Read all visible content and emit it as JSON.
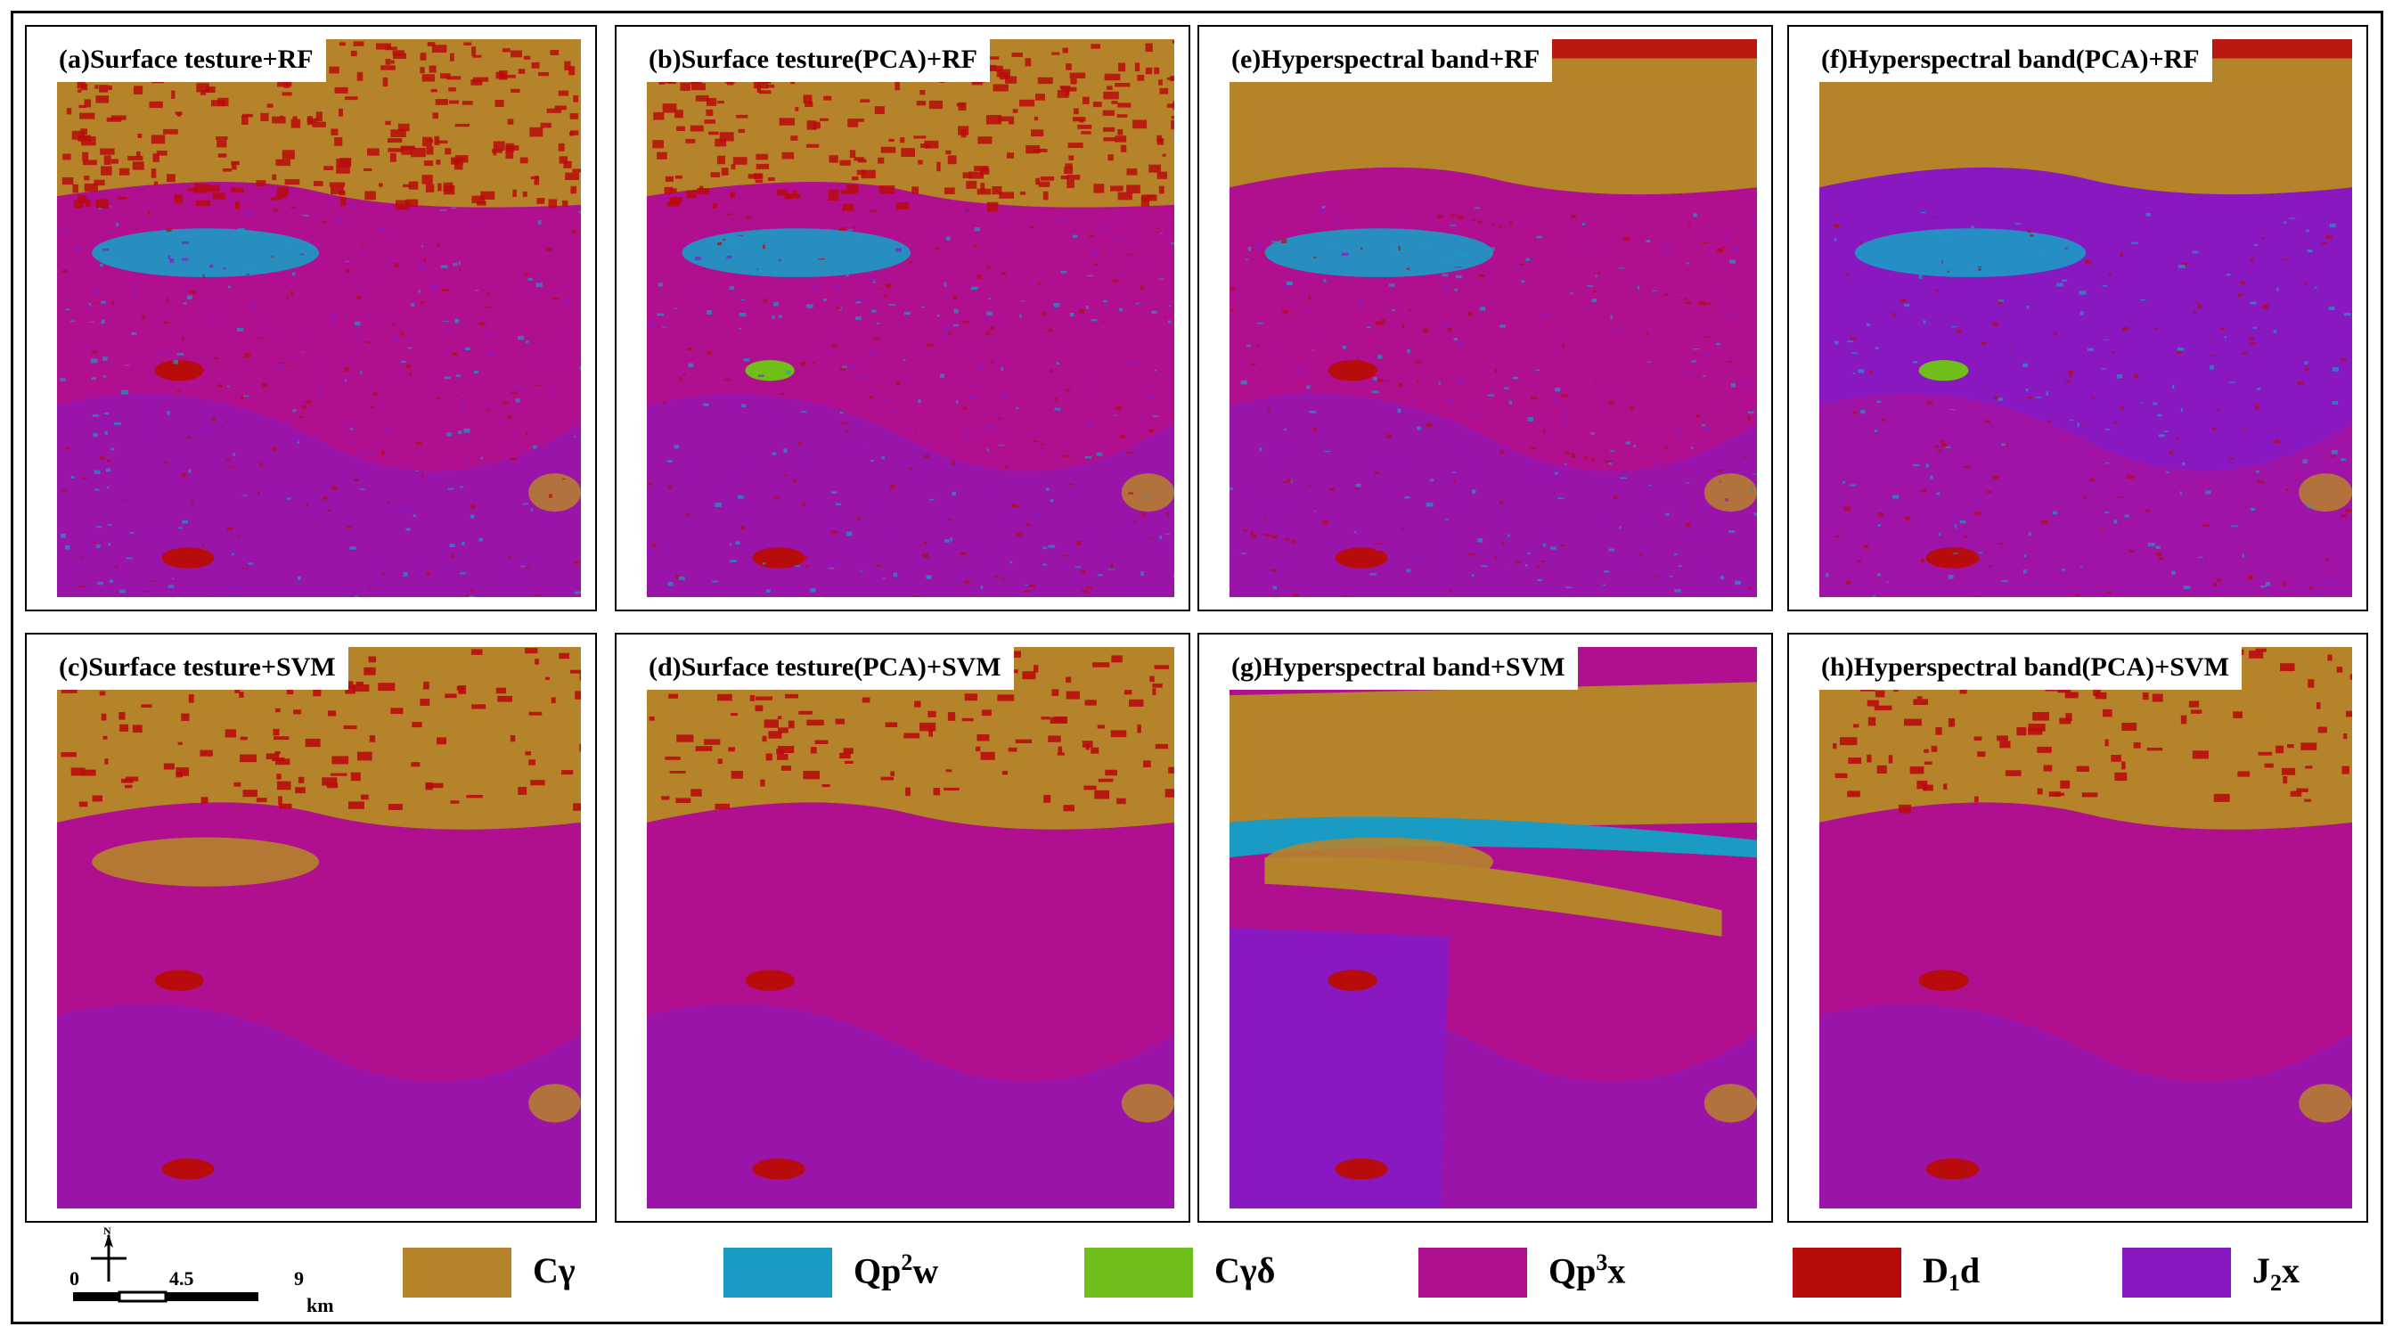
{
  "panels": [
    {
      "title": "(a)Surface testure+RF"
    },
    {
      "title": "(b)Surface testure(PCA)+RF"
    },
    {
      "title": "(e)Hyperspectral band+RF"
    },
    {
      "title": "(f)Hyperspectral band(PCA)+RF"
    },
    {
      "title": "(c)Surface testure+SVM"
    },
    {
      "title": "(d)Surface testure(PCA)+SVM"
    },
    {
      "title": "(g)Hyperspectral band+SVM"
    },
    {
      "title": "(h)Hyperspectral band(PCA)+SVM"
    }
  ],
  "legend": [
    {
      "base": "Cγ",
      "sup": "",
      "sub": "",
      "tail": "",
      "color": "#b5832a"
    },
    {
      "base": "Qp",
      "sup": "2",
      "sub": "",
      "tail": "w",
      "color": "#1a9bc4"
    },
    {
      "base": "Cγδ",
      "sup": "",
      "sub": "",
      "tail": "",
      "color": "#6fbe1a"
    },
    {
      "base": "Qp",
      "sup": "3",
      "sub": "",
      "tail": "x",
      "color": "#b0108f"
    },
    {
      "base": "D",
      "sup": "",
      "sub": "1",
      "tail": "d",
      "color": "#b80c0c"
    },
    {
      "base": "J",
      "sup": "",
      "sub": "2",
      "tail": "x",
      "color": "#8a18c0"
    }
  ],
  "scalebar": {
    "ticks": [
      "0",
      "4.5",
      "9"
    ],
    "unit": "km",
    "north": "N"
  }
}
